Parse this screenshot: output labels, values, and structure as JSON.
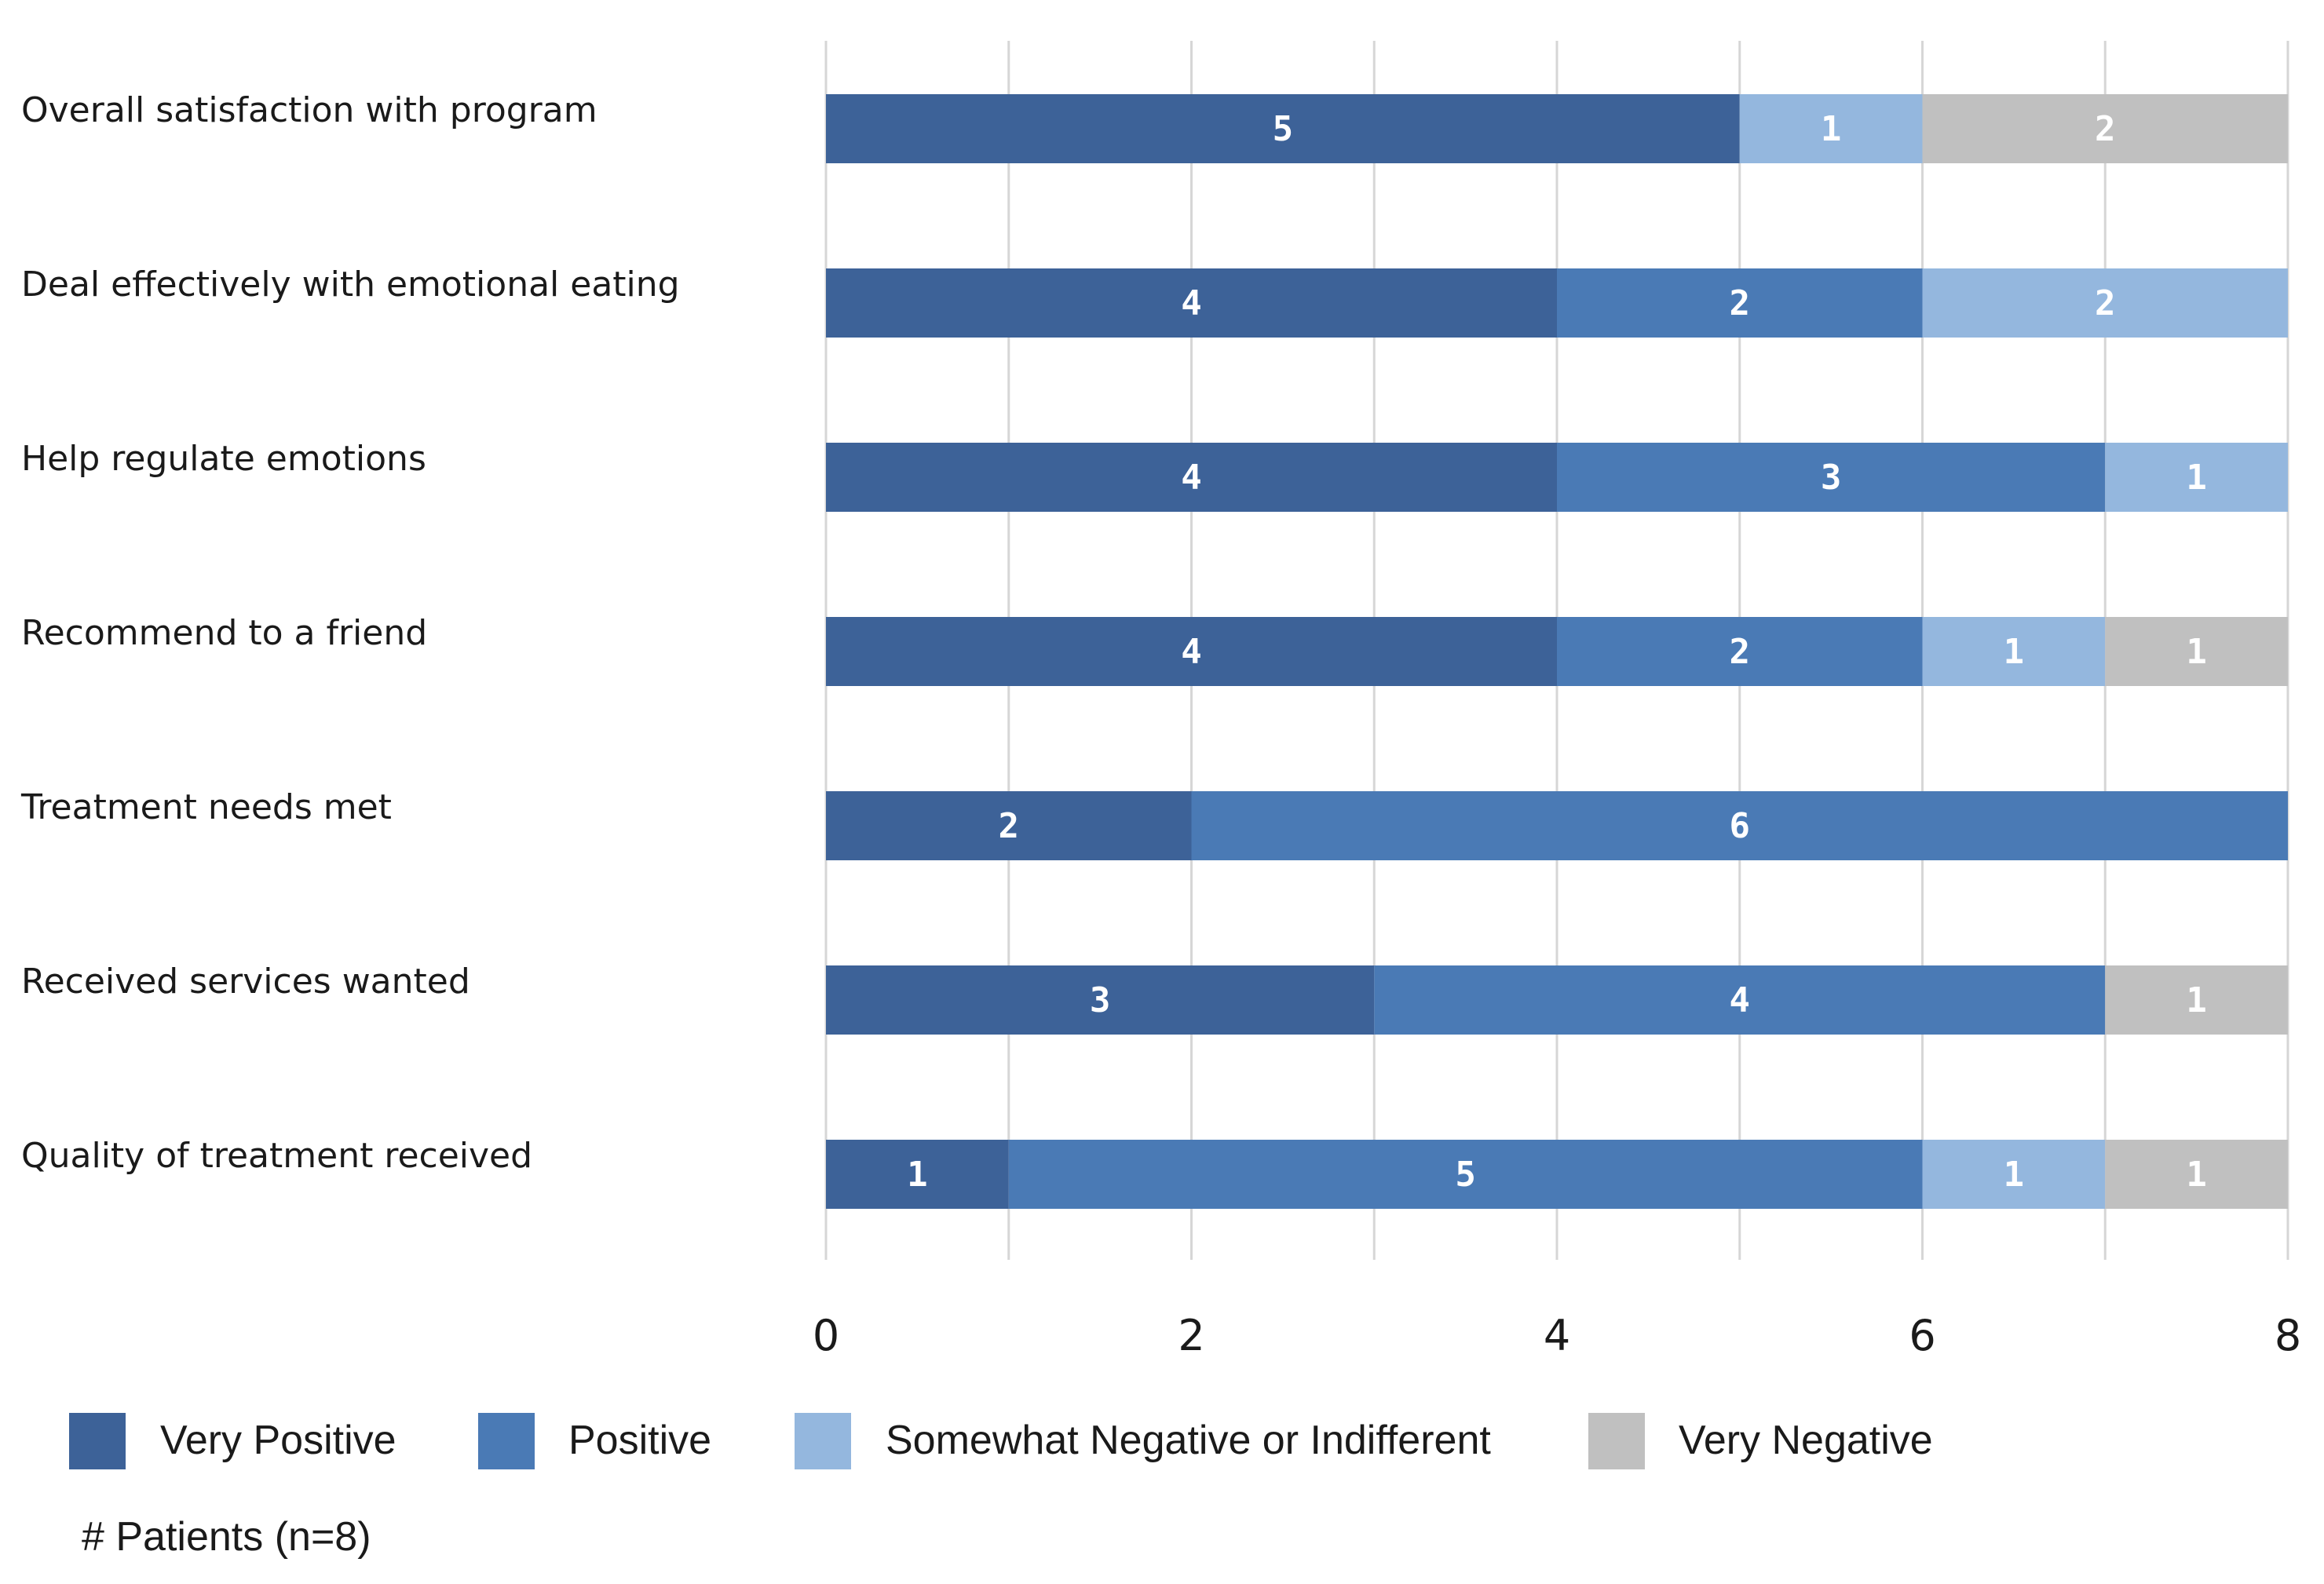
{
  "chart_data": {
    "type": "bar",
    "orientation": "horizontal",
    "stacked": true,
    "categories": [
      "Overall satisfaction with program",
      "Deal effectively with emotional eating",
      "Help regulate emotions",
      "Recommend to a friend",
      "Treatment needs met",
      "Received services wanted",
      "Quality of treatment received"
    ],
    "series": [
      {
        "name": "Very Positive",
        "color": "#3d6298",
        "values": [
          5,
          4,
          4,
          4,
          2,
          3,
          1
        ]
      },
      {
        "name": "Positive",
        "color": "#4a7ab5",
        "values": [
          0,
          2,
          3,
          2,
          6,
          4,
          5
        ]
      },
      {
        "name": "Somewhat Negative or Indifferent",
        "color": "#94b7de",
        "values": [
          1,
          2,
          1,
          1,
          0,
          0,
          1
        ]
      },
      {
        "name": "Very Negative",
        "color": "#c0c0c0",
        "values": [
          2,
          0,
          0,
          1,
          0,
          1,
          1
        ]
      }
    ],
    "xlim": [
      0,
      8
    ],
    "xticks": [
      "0",
      "2",
      "4",
      "6",
      "8"
    ],
    "xlabel": "# Patients (n=8)",
    "grid": "vertical",
    "legend": "bottom"
  }
}
